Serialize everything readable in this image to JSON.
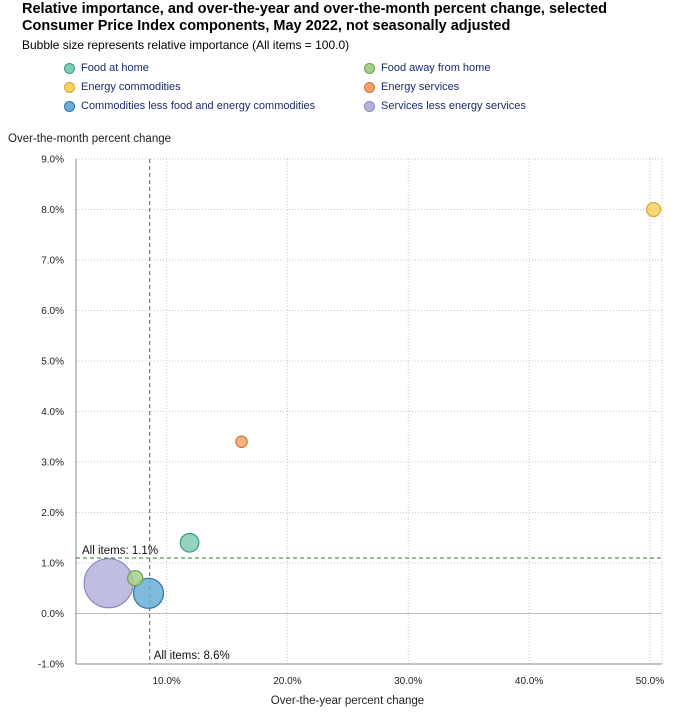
{
  "chart_data": {
    "type": "scatter",
    "title": "Relative importance, and over-the-year and over-the-month percent change, selected Consumer Price Index components, May 2022, not seasonally adjusted",
    "subtitle": "Bubble size represents relative importance (All items = 100.0)",
    "xlabel": "Over-the-year percent change",
    "ylabel": "Over-the-month percent change",
    "xlim": [
      2.5,
      51.0
    ],
    "ylim": [
      -1.0,
      9.0
    ],
    "x_ticks": [
      10,
      20,
      30,
      40,
      50
    ],
    "x_tick_labels": [
      "10.0%",
      "20.0%",
      "30.0%",
      "40.0%",
      "50.0%"
    ],
    "y_ticks": [
      -1,
      0,
      1,
      2,
      3,
      4,
      5,
      6,
      7,
      8,
      9
    ],
    "y_tick_labels": [
      "-1.0%",
      "0.0%",
      "1.0%",
      "2.0%",
      "3.0%",
      "4.0%",
      "5.0%",
      "6.0%",
      "7.0%",
      "8.0%",
      "9.0%"
    ],
    "grid": true,
    "legend_position": "top",
    "reference_lines": {
      "vertical": {
        "x": 8.6,
        "label": "All items: 8.6%"
      },
      "horizontal": {
        "y": 1.1,
        "label": "All items: 1.1%"
      }
    },
    "series": [
      {
        "name": "Food at home",
        "x": 11.9,
        "y": 1.4,
        "relative_importance": 8.2,
        "color": "#7fcdb2",
        "stroke": "#3a9a7a"
      },
      {
        "name": "Food away from home",
        "x": 7.4,
        "y": 0.7,
        "relative_importance": 5.5,
        "color": "#a8d08d",
        "stroke": "#6e9e4f"
      },
      {
        "name": "Energy commodities",
        "x": 50.3,
        "y": 8.0,
        "relative_importance": 4.6,
        "color": "#f5d063",
        "stroke": "#d8a82a"
      },
      {
        "name": "Energy services",
        "x": 16.2,
        "y": 3.4,
        "relative_importance": 3.1,
        "color": "#f4a46a",
        "stroke": "#d07838"
      },
      {
        "name": "Commodities less food and energy commodities",
        "x": 8.5,
        "y": 0.4,
        "relative_importance": 21.4,
        "color": "#6aaed6",
        "stroke": "#2d74a8"
      },
      {
        "name": "Services less energy services",
        "x": 5.2,
        "y": 0.6,
        "relative_importance": 57.1,
        "color": "#b5b3da",
        "stroke": "#8a86bf"
      }
    ]
  }
}
